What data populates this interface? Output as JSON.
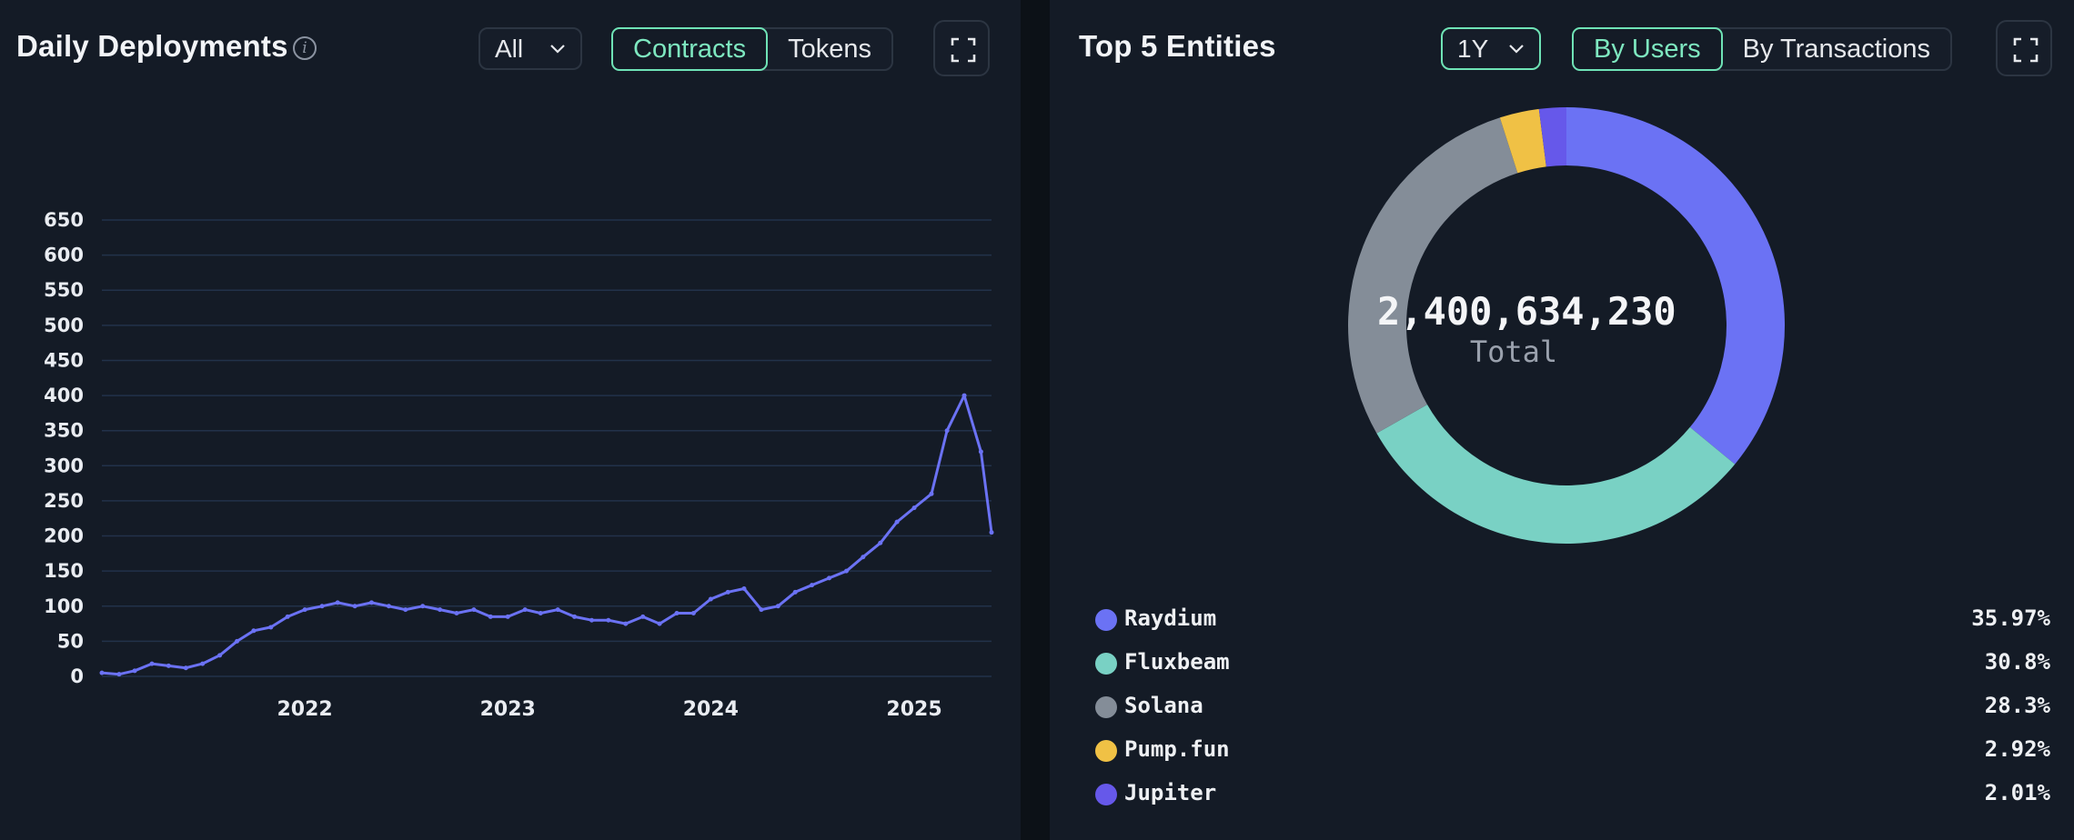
{
  "left_panel": {
    "title": "Daily Deployments",
    "info_icon": "info-circle-icon",
    "range_select": "All",
    "toggle": {
      "options": [
        "Contracts",
        "Tokens"
      ],
      "active": "Contracts"
    },
    "expand_icon": "expand-icon"
  },
  "right_panel": {
    "title": "Top 5 Entities",
    "range_select": "1Y",
    "toggle": {
      "options": [
        "By Users",
        "By Transactions"
      ],
      "active": "By Users"
    },
    "expand_icon": "expand-icon",
    "total_value": "2,400,634,230",
    "total_label": "Total"
  },
  "colors": {
    "line": "#6b72f4",
    "accent": "#6fe3b6",
    "grid": "#22324a"
  },
  "chart_data": [
    {
      "type": "line",
      "title": "Daily Deployments",
      "xlabel": "",
      "ylabel": "",
      "ylim": [
        0,
        650
      ],
      "yticks": [
        0,
        50,
        100,
        150,
        200,
        250,
        300,
        350,
        400,
        450,
        500,
        550,
        600,
        650
      ],
      "xticks": [
        "2022",
        "2023",
        "2024",
        "2025"
      ],
      "xlim": [
        "2021-01-01",
        "2025-05-20"
      ],
      "grid": true,
      "series": [
        {
          "values": [
            [
              "2021-01-01",
              5
            ],
            [
              "2021-02-01",
              3
            ],
            [
              "2021-03-01",
              8
            ],
            [
              "2021-04-01",
              18
            ],
            [
              "2021-05-01",
              15
            ],
            [
              "2021-06-01",
              12
            ],
            [
              "2021-07-01",
              18
            ],
            [
              "2021-08-01",
              30
            ],
            [
              "2021-09-01",
              50
            ],
            [
              "2021-10-01",
              65
            ],
            [
              "2021-11-01",
              70
            ],
            [
              "2021-12-01",
              85
            ],
            [
              "2022-01-01",
              95
            ],
            [
              "2022-02-01",
              100
            ],
            [
              "2022-03-01",
              105
            ],
            [
              "2022-04-01",
              100
            ],
            [
              "2022-05-01",
              105
            ],
            [
              "2022-06-01",
              100
            ],
            [
              "2022-07-01",
              95
            ],
            [
              "2022-08-01",
              100
            ],
            [
              "2022-09-01",
              95
            ],
            [
              "2022-10-01",
              90
            ],
            [
              "2022-11-01",
              95
            ],
            [
              "2022-12-01",
              85
            ],
            [
              "2023-01-01",
              85
            ],
            [
              "2023-02-01",
              95
            ],
            [
              "2023-03-01",
              90
            ],
            [
              "2023-04-01",
              95
            ],
            [
              "2023-05-01",
              85
            ],
            [
              "2023-06-01",
              80
            ],
            [
              "2023-07-01",
              80
            ],
            [
              "2023-08-01",
              75
            ],
            [
              "2023-09-01",
              85
            ],
            [
              "2023-10-01",
              75
            ],
            [
              "2023-11-01",
              90
            ],
            [
              "2023-12-01",
              90
            ],
            [
              "2024-01-01",
              110
            ],
            [
              "2024-02-01",
              120
            ],
            [
              "2024-03-01",
              125
            ],
            [
              "2024-04-01",
              95
            ],
            [
              "2024-05-01",
              100
            ],
            [
              "2024-06-01",
              120
            ],
            [
              "2024-07-01",
              130
            ],
            [
              "2024-08-01",
              140
            ],
            [
              "2024-09-01",
              150
            ],
            [
              "2024-10-01",
              170
            ],
            [
              "2024-11-01",
              190
            ],
            [
              "2024-12-01",
              220
            ],
            [
              "2025-01-01",
              240
            ],
            [
              "2025-02-01",
              260
            ],
            [
              "2025-03-01",
              350
            ],
            [
              "2025-04-01",
              400
            ],
            [
              "2025-05-01",
              320
            ],
            [
              "2025-05-20",
              205
            ]
          ]
        }
      ]
    },
    {
      "type": "pie",
      "title": "Top 5 Entities",
      "donut": true,
      "legend_position": "bottom",
      "slices": [
        {
          "name": "Raydium",
          "value": 35.97,
          "label": "35.97%",
          "color": "#6b72f4"
        },
        {
          "name": "Fluxbeam",
          "value": 30.8,
          "label": "30.8%",
          "color": "#79d1c4"
        },
        {
          "name": "Solana",
          "value": 28.3,
          "label": "28.3%",
          "color": "#848d98"
        },
        {
          "name": "Pump.fun",
          "value": 2.92,
          "label": "2.92%",
          "color": "#f0c145"
        },
        {
          "name": "Jupiter",
          "value": 2.01,
          "label": "2.01%",
          "color": "#6658ea"
        }
      ]
    }
  ]
}
